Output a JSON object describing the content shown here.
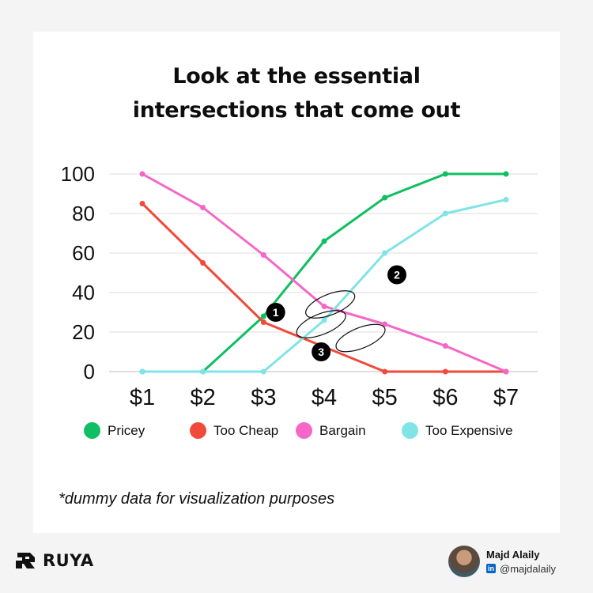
{
  "title_lines": [
    "Look at the essential",
    "intersections that come out"
  ],
  "chart_data": {
    "type": "line",
    "categories": [
      "$1",
      "$2",
      "$3",
      "$4",
      "$5",
      "$6",
      "$7"
    ],
    "ylim": [
      0,
      100
    ],
    "yticks": [
      0,
      20,
      40,
      60,
      80,
      100
    ],
    "grid": true,
    "legend_position": "bottom",
    "series": [
      {
        "name": "Pricey",
        "color": "#0fbf62",
        "values": [
          0,
          0,
          28,
          66,
          88,
          100,
          100
        ]
      },
      {
        "name": "Too Cheap",
        "color": "#f04a3a",
        "values": [
          85,
          55,
          25,
          12.5,
          0,
          0,
          0
        ]
      },
      {
        "name": "Bargain",
        "color": "#f467c8",
        "values": [
          100,
          83,
          59,
          33,
          24,
          13,
          0
        ]
      },
      {
        "name": "Too Expensive",
        "color": "#80e4e6",
        "values": [
          0,
          0,
          0,
          26,
          60,
          80,
          87
        ]
      }
    ],
    "annotations": [
      {
        "label": "1",
        "x": 2.95,
        "y": 24,
        "badge_x": 2.2,
        "badge_y": 30
      },
      {
        "label": "2",
        "x": 3.1,
        "y": 34,
        "badge_x": 4.2,
        "badge_y": 49
      },
      {
        "label": "3",
        "x": 3.6,
        "y": 17,
        "badge_x": 2.95,
        "badge_y": 10
      }
    ]
  },
  "footnote": "*dummy data for visualization purposes",
  "brand": {
    "name": "RUYA"
  },
  "author": {
    "name": "Majd Alaily",
    "handle": "@majdalaily"
  }
}
